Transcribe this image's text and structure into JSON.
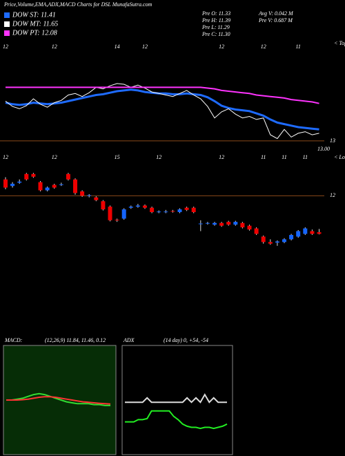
{
  "chart_data": [
    {
      "type": "line",
      "title": "Price,Volume,EMA,ADX,MACD Charts for DSL MunafaSutra.com",
      "info": [
        "Pre  O: 11.33",
        "Pre  H: 11.39",
        "Pre  L: 11.29",
        "Pre  C: 11.30",
        "Avg V: 0.042  M",
        "Pre  V: 0.687 M"
      ],
      "side_label": "< Tops",
      "last_label": "13.00",
      "categories": [
        "12",
        null,
        null,
        null,
        null,
        null,
        null,
        "12",
        null,
        null,
        null,
        null,
        null,
        null,
        null,
        null,
        "14",
        null,
        null,
        null,
        "12",
        null,
        null,
        null,
        null,
        null,
        null,
        null,
        null,
        null,
        null,
        "12",
        null,
        null,
        null,
        null,
        null,
        "12",
        null,
        null,
        null,
        null,
        "11",
        null,
        null,
        null
      ],
      "ylim": [
        12.9,
        14.3
      ],
      "yticks": [
        13
      ],
      "series": [
        {
          "name": "DOW ST: 11.41",
          "color": "#1e6bff",
          "values": [
            13.5,
            13.48,
            13.47,
            13.48,
            13.5,
            13.49,
            13.48,
            13.49,
            13.5,
            13.52,
            13.54,
            13.56,
            13.58,
            13.6,
            13.61,
            13.63,
            13.65,
            13.66,
            13.67,
            13.66,
            13.64,
            13.63,
            13.62,
            13.62,
            13.61,
            13.61,
            13.62,
            13.61,
            13.6,
            13.57,
            13.52,
            13.46,
            13.43,
            13.41,
            13.4,
            13.39,
            13.36,
            13.33,
            13.28,
            13.24,
            13.22,
            13.2,
            13.18,
            13.17,
            13.16,
            13.15
          ]
        },
        {
          "name": "DOW MT: 11.65",
          "color": "#ffffff",
          "values": [
            13.52,
            13.45,
            13.42,
            13.46,
            13.55,
            13.48,
            13.44,
            13.5,
            13.53,
            13.6,
            13.62,
            13.58,
            13.63,
            13.7,
            13.68,
            13.72,
            13.75,
            13.74,
            13.7,
            13.73,
            13.69,
            13.64,
            13.62,
            13.6,
            13.58,
            13.62,
            13.66,
            13.6,
            13.55,
            13.45,
            13.3,
            13.38,
            13.42,
            13.35,
            13.3,
            13.32,
            13.28,
            13.3,
            13.08,
            13.03,
            13.15,
            13.05,
            13.1,
            13.12,
            13.08,
            13.1
          ]
        },
        {
          "name": "DOW PT: 12.08",
          "color": "#ff33ff",
          "values": [
            13.7,
            13.7,
            13.7,
            13.7,
            13.7,
            13.7,
            13.7,
            13.7,
            13.7,
            13.7,
            13.7,
            13.7,
            13.7,
            13.7,
            13.7,
            13.7,
            13.7,
            13.7,
            13.7,
            13.7,
            13.7,
            13.7,
            13.7,
            13.7,
            13.7,
            13.7,
            13.7,
            13.7,
            13.7,
            13.69,
            13.68,
            13.66,
            13.65,
            13.64,
            13.63,
            13.62,
            13.6,
            13.59,
            13.58,
            13.57,
            13.56,
            13.54,
            13.53,
            13.52,
            13.51,
            13.49
          ]
        }
      ]
    },
    {
      "type": "candlestick",
      "side_label": "< Lows",
      "categories": [
        "12",
        null,
        null,
        null,
        null,
        null,
        null,
        "12",
        null,
        null,
        null,
        null,
        null,
        null,
        null,
        null,
        "15",
        null,
        null,
        null,
        null,
        null,
        "12",
        null,
        null,
        null,
        null,
        null,
        null,
        null,
        null,
        "12",
        null,
        null,
        null,
        null,
        null,
        "11",
        null,
        null,
        "11",
        null,
        null,
        "11",
        null,
        null
      ],
      "ylim": [
        10.9,
        12.55
      ],
      "yticks": [
        12
      ],
      "up_color": "#1565ff",
      "down_color": "#ee0000",
      "open": [
        12.3,
        12.18,
        12.24,
        12.4,
        12.4,
        12.25,
        12.1,
        12.2,
        12.2,
        12.4,
        12.3,
        12.08,
        12.0,
        11.97,
        11.9,
        11.8,
        11.56,
        11.58,
        11.78,
        11.8,
        11.82,
        11.78,
        11.7,
        11.7,
        11.72,
        11.7,
        11.78,
        11.78,
        11.48,
        11.5,
        11.47,
        11.5,
        11.52,
        11.47,
        11.5,
        11.45,
        11.4,
        11.25,
        11.15,
        11.14,
        11.15,
        11.2,
        11.25,
        11.3,
        11.35,
        11.33
      ],
      "high": [
        12.34,
        12.25,
        12.3,
        12.42,
        12.42,
        12.27,
        12.17,
        12.22,
        12.24,
        12.42,
        12.32,
        12.1,
        12.03,
        11.99,
        11.92,
        11.82,
        11.58,
        11.77,
        11.82,
        11.85,
        11.84,
        11.8,
        11.73,
        11.74,
        11.74,
        11.77,
        11.8,
        11.8,
        11.55,
        11.52,
        11.52,
        11.52,
        11.54,
        11.54,
        11.52,
        11.47,
        11.42,
        11.27,
        11.2,
        11.18,
        11.22,
        11.3,
        11.37,
        11.42,
        11.38,
        11.39
      ],
      "low": [
        12.12,
        12.15,
        12.22,
        12.28,
        12.33,
        12.08,
        12.08,
        12.13,
        12.18,
        12.28,
        12.02,
        11.98,
        11.97,
        11.9,
        11.73,
        11.53,
        11.52,
        11.56,
        11.76,
        11.78,
        11.76,
        11.68,
        11.68,
        11.68,
        11.69,
        11.68,
        11.72,
        11.68,
        11.35,
        11.47,
        11.45,
        11.43,
        11.45,
        11.45,
        11.4,
        11.36,
        11.28,
        11.12,
        11.1,
        11.08,
        11.13,
        11.18,
        11.23,
        11.28,
        11.28,
        11.29
      ],
      "close": [
        12.15,
        12.22,
        12.26,
        12.3,
        12.35,
        12.1,
        12.15,
        12.15,
        12.21,
        12.3,
        12.05,
        12.0,
        12.01,
        11.92,
        11.75,
        11.55,
        11.55,
        11.75,
        11.8,
        11.82,
        11.78,
        11.7,
        11.71,
        11.71,
        11.71,
        11.75,
        11.74,
        11.7,
        11.49,
        11.5,
        11.5,
        11.45,
        11.47,
        11.52,
        11.42,
        11.38,
        11.3,
        11.15,
        11.12,
        11.16,
        11.2,
        11.28,
        11.35,
        11.4,
        11.3,
        11.3
      ]
    },
    {
      "type": "macd",
      "title": "MACD:",
      "subtitle": "(12,26,9) 11.84, 11.46, 0.12",
      "background": "#062d06",
      "ylim": [
        -3,
        3
      ],
      "series": [
        {
          "color": "#33dd33",
          "values": [
            0,
            0,
            0.05,
            0.1,
            0.2,
            0.3,
            0.35,
            0.3,
            0.2,
            0.1,
            0,
            -0.1,
            -0.15,
            -0.2,
            -0.2,
            -0.2,
            -0.25,
            -0.25,
            -0.3,
            -0.3
          ]
        },
        {
          "color": "#ff3333",
          "values": [
            0,
            0,
            0,
            0.02,
            0.05,
            0.1,
            0.15,
            0.18,
            0.18,
            0.15,
            0.1,
            0.05,
            0,
            -0.05,
            -0.1,
            -0.12,
            -0.15,
            -0.18,
            -0.2,
            -0.22
          ]
        }
      ]
    },
    {
      "type": "adx",
      "title": "ADX",
      "subtitle": "(14 day) 0, +54, -54",
      "background": "#000000",
      "ylim": [
        0,
        100
      ],
      "series": [
        {
          "color": "#dddddd",
          "values": [
            48,
            48,
            48,
            48,
            48,
            52,
            48,
            48,
            48,
            48,
            48,
            48,
            48,
            48,
            52,
            48,
            52,
            48,
            55,
            48,
            52,
            48,
            48,
            48
          ]
        },
        {
          "color": "#22ee22",
          "values": [
            30,
            30,
            30,
            32,
            32,
            33,
            40,
            40,
            40,
            40,
            40,
            35,
            32,
            28,
            26,
            25,
            25,
            24,
            25,
            25,
            24,
            25,
            26,
            28
          ]
        }
      ]
    }
  ]
}
